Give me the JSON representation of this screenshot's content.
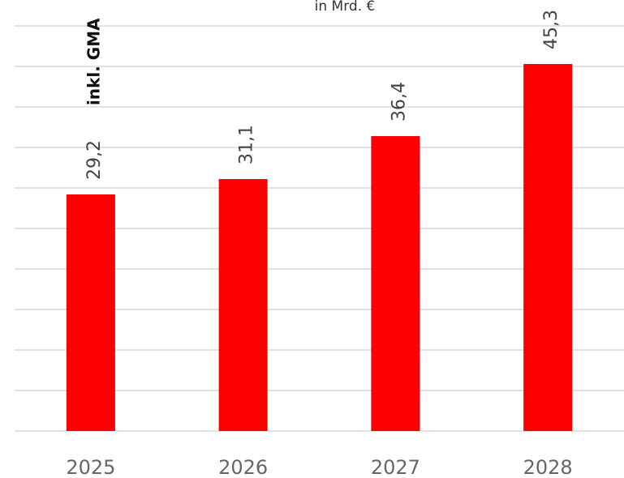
{
  "chart_data": {
    "type": "bar",
    "subtitle": "in Mrd. €",
    "annotation": "inkl. GMA",
    "categories": [
      "2025",
      "2026",
      "2027",
      "2028"
    ],
    "values": [
      29.2,
      31.1,
      36.4,
      45.3
    ],
    "value_labels": [
      "29,2",
      "31,1",
      "36,4",
      "45,3"
    ],
    "color": "#ff0000",
    "ylim": [
      0,
      50
    ],
    "yticks": [
      0,
      5,
      10,
      15,
      20,
      25,
      30,
      35,
      40,
      45,
      50
    ],
    "grid": true
  }
}
